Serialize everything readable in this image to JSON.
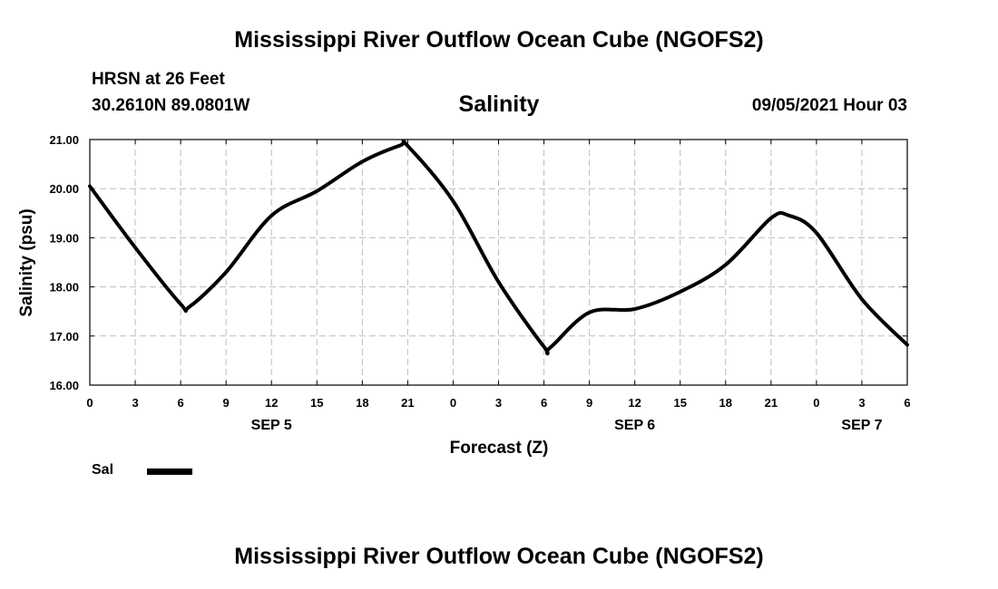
{
  "header": {
    "title": "Mississippi River Outflow Ocean Cube (NGOFS2)",
    "station": "HRSN at 26 Feet",
    "coordinates": "30.2610N  89.0801W",
    "parameter": "Salinity",
    "timestamp": "09/05/2021 Hour 03"
  },
  "footer": {
    "title": "Mississippi River Outflow Ocean Cube (NGOFS2)"
  },
  "legend": {
    "label": "Sal",
    "placement": "bottom-left"
  },
  "chart_data": {
    "type": "line",
    "title": "Salinity",
    "xlabel": "Forecast (Z)",
    "ylabel": "Salinity (psu)",
    "ylim": [
      16.0,
      21.0
    ],
    "xlim": [
      0,
      54
    ],
    "grid": true,
    "line_color": "#000000",
    "y_ticks": [
      "16.00",
      "17.00",
      "18.00",
      "19.00",
      "20.00",
      "21.00"
    ],
    "x_ticks": [
      "0",
      "3",
      "6",
      "9",
      "12",
      "15",
      "18",
      "21",
      "0",
      "3",
      "6",
      "9",
      "12",
      "15",
      "18",
      "21",
      "0",
      "3",
      "6"
    ],
    "day_labels": [
      {
        "label": "SEP 5",
        "x": 12
      },
      {
        "label": "SEP 6",
        "x": 36
      },
      {
        "label": "SEP 7",
        "x": 51
      }
    ],
    "series": [
      {
        "name": "Sal",
        "x": [
          0,
          3,
          6,
          6.6,
          9,
          12,
          15,
          18,
          20.5,
          21,
          24,
          27,
          30,
          30.4,
          33,
          36,
          39,
          42,
          45,
          46.2,
          48,
          51,
          54
        ],
        "values": [
          20.05,
          18.8,
          17.65,
          17.6,
          18.3,
          19.45,
          19.95,
          20.55,
          20.88,
          20.87,
          19.75,
          18.1,
          16.78,
          16.76,
          17.48,
          17.55,
          17.9,
          18.45,
          19.4,
          19.45,
          19.1,
          17.75,
          16.82
        ]
      }
    ]
  }
}
